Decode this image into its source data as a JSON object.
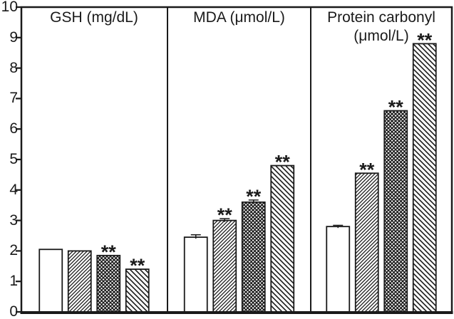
{
  "figure": {
    "background": "#ffffff",
    "ink_color": "#1a1a1a",
    "description": "Three-panel bar chart sharing one y-axis"
  },
  "chart_data": {
    "type": "bar",
    "ylim": [
      0,
      10
    ],
    "yticks": [
      0,
      1,
      2,
      3,
      4,
      5,
      6,
      7,
      8,
      9,
      10
    ],
    "grid": "off",
    "legend": "none",
    "bar_styles": [
      "open-white",
      "diagonal-up-hatch",
      "crosshatch",
      "diagonal-down-hatch"
    ],
    "panels": [
      {
        "title": "GSH (mg/dL)",
        "values": [
          2.05,
          2.0,
          1.85,
          1.4
        ],
        "errors": [
          0,
          0,
          0,
          0
        ],
        "significance": [
          "",
          "",
          "**",
          "**"
        ]
      },
      {
        "title": "MDA (μmol/L)",
        "values": [
          2.45,
          3.0,
          3.6,
          4.8
        ],
        "errors": [
          0.08,
          0.06,
          0.07,
          0
        ],
        "significance": [
          "",
          "**",
          "**",
          "**"
        ]
      },
      {
        "title": "Protein carbonyl\n(μmol/L)",
        "values": [
          2.8,
          4.55,
          6.6,
          8.8
        ],
        "errors": [
          0.04,
          0,
          0,
          0
        ],
        "significance": [
          "",
          "**",
          "**",
          "**"
        ]
      }
    ]
  }
}
